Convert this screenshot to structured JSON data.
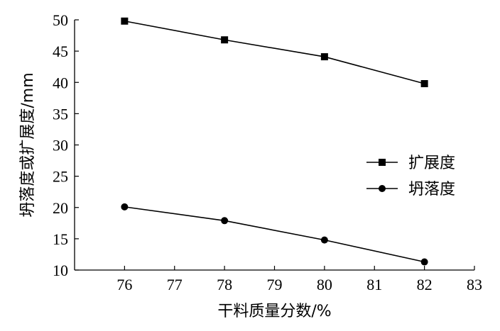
{
  "chart_data": {
    "type": "line",
    "xlabel": "干料质量分数/%",
    "ylabel": "坍落度或扩展度/mm",
    "xlim": [
      75,
      83
    ],
    "ylim": [
      10,
      50
    ],
    "xticks": [
      76,
      77,
      78,
      79,
      80,
      81,
      82,
      83
    ],
    "yticks": [
      10,
      15,
      20,
      25,
      30,
      35,
      40,
      45,
      50
    ],
    "x": [
      76,
      78,
      80,
      82
    ],
    "series": [
      {
        "name": "扩展度",
        "marker": "square",
        "values": [
          49.8,
          46.8,
          44.1,
          39.8
        ]
      },
      {
        "name": "坍落度",
        "marker": "circle",
        "values": [
          20.1,
          17.9,
          14.8,
          11.3
        ]
      }
    ],
    "grid": false,
    "legend": "right-middle",
    "color": "#000000"
  }
}
